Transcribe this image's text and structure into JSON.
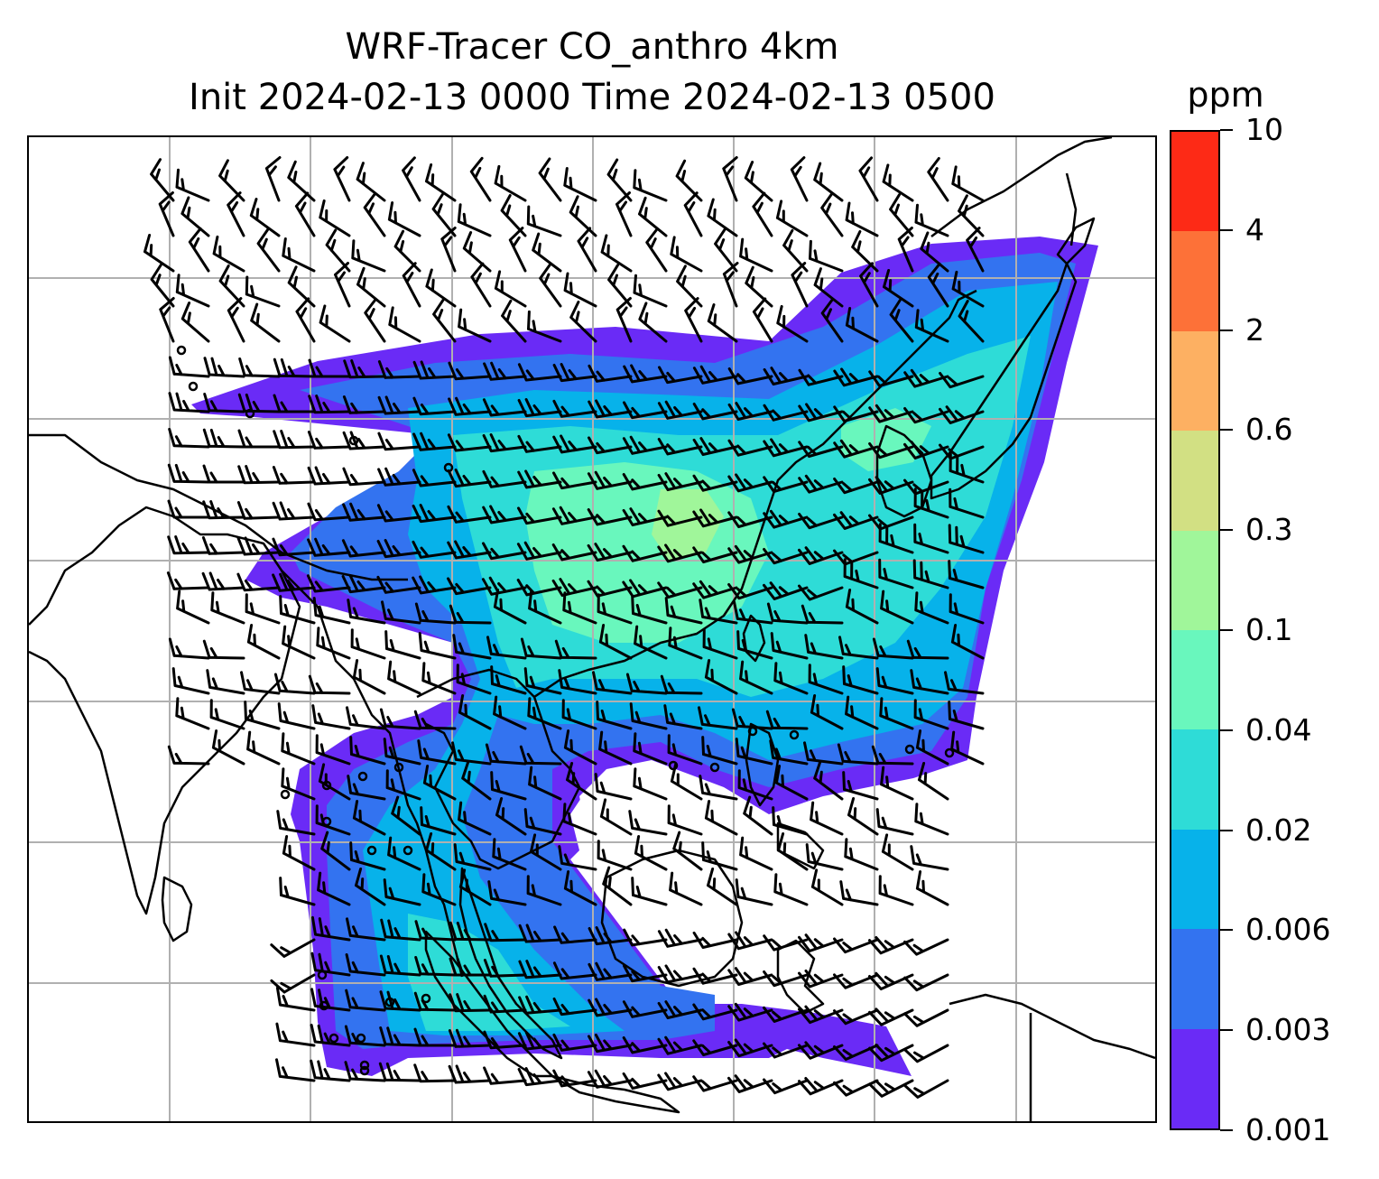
{
  "title": {
    "line1": "WRF-Tracer CO_anthro 4km",
    "line2": "Init 2024-02-13 0000 Time 2024-02-13 0500"
  },
  "colorbar": {
    "unit": "ppm",
    "levels": [
      "0.001",
      "0.003",
      "0.006",
      "0.02",
      "0.04",
      "0.1",
      "0.3",
      "0.6",
      "2",
      "4",
      "10"
    ],
    "colors": [
      "#6a2bf6",
      "#3373f0",
      "#07b2ea",
      "#2edcd7",
      "#69f7bd",
      "#a0f69a",
      "#d2e083",
      "#fdb062",
      "#fd7138",
      "#fd2a16"
    ]
  },
  "map": {
    "gridlines": true,
    "coastline_color": "#000000",
    "grid_color": "#b0b0b0",
    "wind_barbs": true,
    "tracer_field": "CO_anthro"
  }
}
